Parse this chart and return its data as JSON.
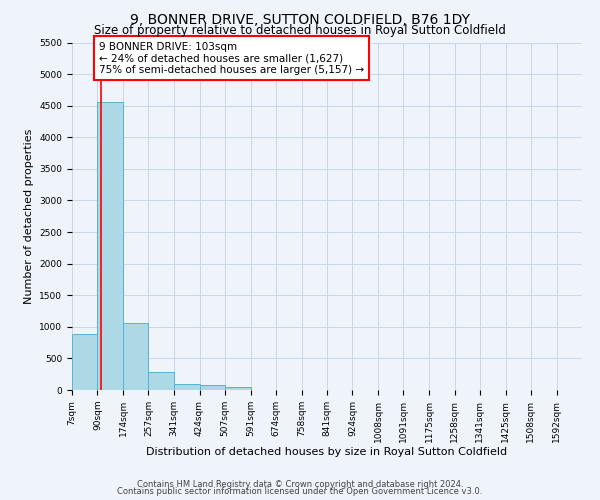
{
  "title": "9, BONNER DRIVE, SUTTON COLDFIELD, B76 1DY",
  "subtitle": "Size of property relative to detached houses in Royal Sutton Coldfield",
  "xlabel": "Distribution of detached houses by size in Royal Sutton Coldfield",
  "ylabel": "Number of detached properties",
  "footer_line1": "Contains HM Land Registry data © Crown copyright and database right 2024.",
  "footer_line2": "Contains public sector information licensed under the Open Government Licence v3.0.",
  "bar_edges": [
    7,
    90,
    174,
    257,
    341,
    424,
    507,
    591,
    674,
    758,
    841,
    924,
    1008,
    1091,
    1175,
    1258,
    1341,
    1425,
    1508,
    1592,
    1675
  ],
  "bar_heights": [
    890,
    4560,
    1060,
    280,
    90,
    80,
    50,
    0,
    0,
    0,
    0,
    0,
    0,
    0,
    0,
    0,
    0,
    0,
    0,
    0
  ],
  "bar_color": "#add8e6",
  "bar_edge_color": "#5bafd6",
  "vline_x": 103,
  "vline_color": "red",
  "annotation_text": "9 BONNER DRIVE: 103sqm\n← 24% of detached houses are smaller (1,627)\n75% of semi-detached houses are larger (5,157) →",
  "annotation_box_color": "red",
  "annotation_text_color": "black",
  "annotation_fill": "white",
  "ylim": [
    0,
    5500
  ],
  "yticks": [
    0,
    500,
    1000,
    1500,
    2000,
    2500,
    3000,
    3500,
    4000,
    4500,
    5000,
    5500
  ],
  "grid_color": "#c8d8e8",
  "background_color": "#eef4fa",
  "title_fontsize": 10,
  "subtitle_fontsize": 8.5,
  "tick_label_fontsize": 6.5,
  "ylabel_fontsize": 8,
  "xlabel_fontsize": 8,
  "footer_fontsize": 6,
  "annotation_fontsize": 7.5
}
